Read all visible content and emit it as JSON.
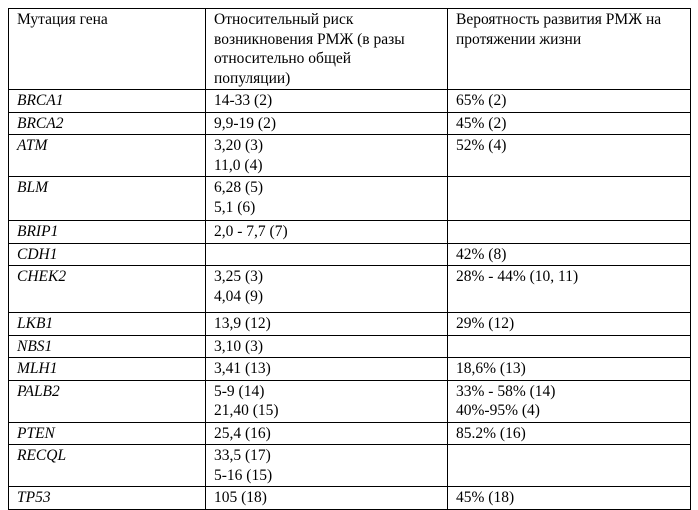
{
  "table": {
    "columns": [
      {
        "label": "Мутация гена"
      },
      {
        "label": "Относительный риск\nвозникновения РМЖ (в разы\nотносительно общей\nпопуляции)"
      },
      {
        "label": "Вероятность развития РМЖ на\nпротяжении жизни"
      }
    ],
    "rows": [
      {
        "gene": "BRCA1",
        "risk": "14-33 (2)",
        "lifetime": "65% (2)"
      },
      {
        "gene": "BRCA2",
        "risk": "9,9-19 (2)",
        "lifetime": "45% (2)"
      },
      {
        "gene": "ATM",
        "risk": "3,20 (3)\n11,0 (4)",
        "lifetime": "52% (4)"
      },
      {
        "gene": "BLM",
        "risk": "6,28 (5)\n5,1 (6)",
        "lifetime": ""
      },
      {
        "gene": "BRIP1",
        "risk": "2,0 - 7,7 (7)",
        "lifetime": ""
      },
      {
        "gene": "CDH1",
        "risk": "",
        "lifetime": "42% (8)"
      },
      {
        "gene": "CHEK2",
        "risk": "3,25 (3)\n4,04 (9)",
        "lifetime": "28% - 44% (10, 11)"
      },
      {
        "gene": "LKB1",
        "risk": "13,9 (12)",
        "lifetime": "29% (12)"
      },
      {
        "gene": "NBS1",
        "risk": "3,10 (3)",
        "lifetime": ""
      },
      {
        "gene": "MLH1",
        "risk": "3,41 (13)",
        "lifetime": "18,6% (13)"
      },
      {
        "gene": "PALB2",
        "risk": "5-9 (14)\n21,40 (15)",
        "lifetime": "33% - 58% (14)\n40%-95% (4)"
      },
      {
        "gene": "PTEN",
        "risk": "25,4 (16)",
        "lifetime": "85.2% (16)"
      },
      {
        "gene": "RECQL",
        "risk": "33,5 (17)\n5-16 (15)",
        "lifetime": ""
      },
      {
        "gene": "TP53",
        "risk": "105 (18)",
        "lifetime": "45% (18)"
      }
    ]
  }
}
